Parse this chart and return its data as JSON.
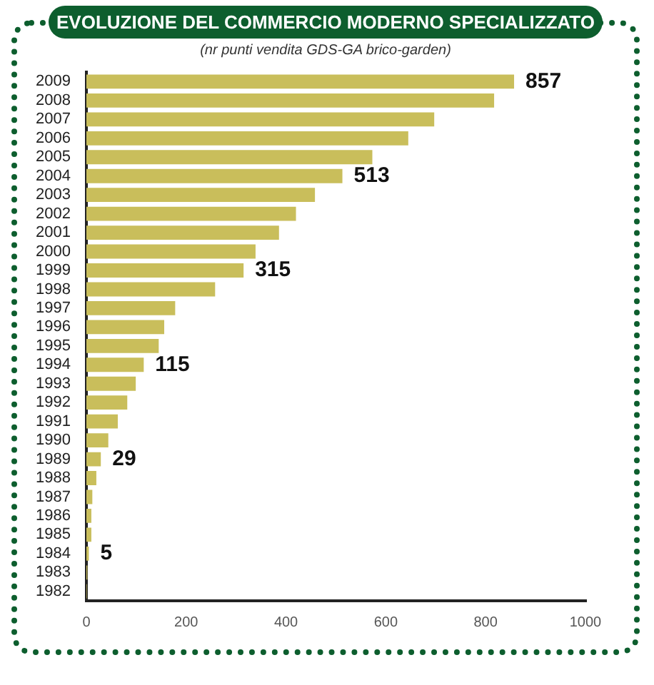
{
  "chart_data": {
    "type": "bar",
    "orientation": "horizontal",
    "title": "EVOLUZIONE DEL COMMERCIO MODERNO SPECIALIZZATO",
    "subtitle": "(nr punti vendita GDS-GA brico-garden)",
    "categories": [
      "2009",
      "2008",
      "2007",
      "2006",
      "2005",
      "2004",
      "2003",
      "2002",
      "2001",
      "2000",
      "1999",
      "1998",
      "1997",
      "1996",
      "1995",
      "1994",
      "1993",
      "1992",
      "1991",
      "1990",
      "1989",
      "1988",
      "1987",
      "1986",
      "1985",
      "1984",
      "1983",
      "1982"
    ],
    "values": [
      857,
      817,
      697,
      645,
      573,
      513,
      458,
      420,
      386,
      339,
      315,
      258,
      178,
      156,
      145,
      115,
      99,
      82,
      63,
      44,
      29,
      20,
      12,
      10,
      10,
      5,
      2,
      1
    ],
    "value_labels": [
      "857",
      null,
      null,
      null,
      null,
      "513",
      null,
      null,
      null,
      null,
      "315",
      null,
      null,
      null,
      null,
      "115",
      null,
      null,
      null,
      null,
      "29",
      null,
      null,
      null,
      null,
      "5",
      null,
      null
    ],
    "color": "#c9be5b",
    "xlim": [
      0,
      1000
    ],
    "xticks": [
      0,
      200,
      400,
      600,
      800,
      1000
    ],
    "grid": false
  }
}
